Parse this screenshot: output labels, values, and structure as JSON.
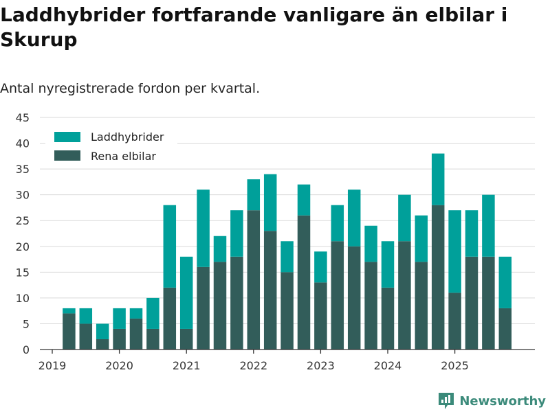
{
  "title": "Laddhybrider fortfarande vanligare än elbilar i Skurup",
  "subtitle": "Antal nyregistrerade fordon per kvartal.",
  "brand": "Newsworthy",
  "colors": {
    "laddhybrider": "#00a09a",
    "elbilar": "#325d5a",
    "grid": "#d9d9d9",
    "axis": "#333333"
  },
  "chart_data": {
    "type": "bar",
    "stacked": true,
    "title": "Laddhybrider fortfarande vanligare än elbilar i Skurup",
    "subtitle": "Antal nyregistrerade fordon per kvartal.",
    "xlabel": "",
    "ylabel": "",
    "ylim": [
      0,
      45
    ],
    "yticks": [
      "0",
      "5",
      "10",
      "15",
      "20",
      "25",
      "30",
      "35",
      "40",
      "45"
    ],
    "xticks": [
      {
        "label": "2019",
        "quarter": 0
      },
      {
        "label": "2020",
        "quarter": 4
      },
      {
        "label": "2021",
        "quarter": 8
      },
      {
        "label": "2022",
        "quarter": 12
      },
      {
        "label": "2023",
        "quarter": 16
      },
      {
        "label": "2024",
        "quarter": 20
      },
      {
        "label": "2025",
        "quarter": 24
      }
    ],
    "quarters": [
      "2019 Q1",
      "2019 Q2",
      "2019 Q3",
      "2019 Q4",
      "2020 Q1",
      "2020 Q2",
      "2020 Q3",
      "2020 Q4",
      "2021 Q1",
      "2021 Q2",
      "2021 Q3",
      "2021 Q4",
      "2022 Q1",
      "2022 Q2",
      "2022 Q3",
      "2022 Q4",
      "2023 Q1",
      "2023 Q2",
      "2023 Q3",
      "2023 Q4",
      "2024 Q1",
      "2024 Q2",
      "2024 Q3",
      "2024 Q4",
      "2025 Q1",
      "2025 Q2",
      "2025 Q3",
      "2025 Q4"
    ],
    "legend_position": "top-left",
    "series": [
      {
        "name": "Rena elbilar",
        "key": "elbilar",
        "values": [
          0,
          7,
          5,
          2,
          4,
          6,
          4,
          12,
          4,
          16,
          17,
          18,
          27,
          23,
          15,
          26,
          13,
          21,
          20,
          17,
          12,
          21,
          17,
          28,
          11,
          18,
          18,
          8
        ]
      },
      {
        "name": "Laddhybrider",
        "key": "laddhybrider",
        "values": [
          0,
          1,
          3,
          3,
          4,
          2,
          6,
          16,
          14,
          15,
          5,
          9,
          6,
          11,
          6,
          6,
          6,
          7,
          11,
          7,
          9,
          9,
          9,
          10,
          16,
          9,
          12,
          10
        ]
      }
    ],
    "legend": [
      "Laddhybrider",
      "Rena elbilar"
    ]
  }
}
